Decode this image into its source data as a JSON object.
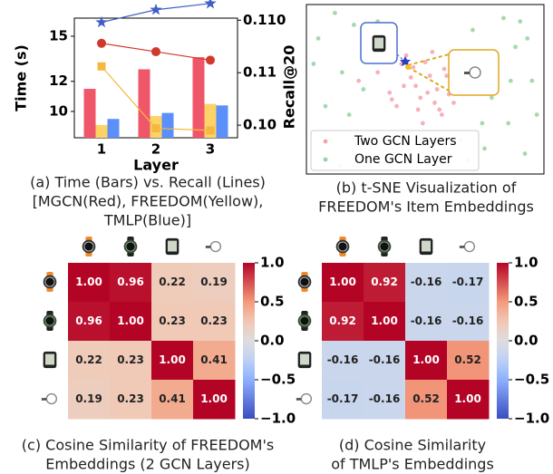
{
  "chart_data": [
    {
      "type": "bar",
      "categories": [
        "1",
        "2",
        "3"
      ],
      "xlabel": "Layer",
      "ylabel": "Time (s)",
      "y2label": "Recall@20",
      "ylim": [
        8.25,
        16.2
      ],
      "yticks": [
        10,
        12,
        15
      ],
      "y2lim": [
        0.0988,
        0.1102
      ],
      "y2ticks": [
        {
          "value": 0.11,
          "label": "0.110"
        },
        {
          "value": 0.105,
          "label": "0.11"
        },
        {
          "value": 0.1,
          "label": "0.10"
        }
      ],
      "series": [
        {
          "color": "#f0566a",
          "values": [
            11.5,
            12.8,
            13.6
          ]
        },
        {
          "color": "#fcd367",
          "values": [
            9.1,
            9.7,
            10.5
          ]
        },
        {
          "color": "#5b8ff9",
          "values": [
            9.5,
            9.9,
            10.4
          ]
        },
        {
          "type": "line",
          "axis": "y2",
          "marker": "star",
          "color": "#3f5fc8",
          "values": [
            0.1098,
            0.111,
            0.1116
          ]
        },
        {
          "type": "line",
          "axis": "y2",
          "marker": "circle",
          "color": "#d03a2c",
          "values": [
            0.1078,
            0.107,
            0.1062
          ]
        },
        {
          "type": "line",
          "axis": "y2",
          "marker": "square",
          "color": "#f5b73f",
          "values": [
            0.1056,
            0.0997,
            0.0995
          ]
        }
      ],
      "caption": [
        "(a) Time (Bars) vs. Recall (Lines)",
        "[MGCN(Red), FREEDOM(Yellow),",
        "TMLP(Blue)]"
      ]
    },
    {
      "type": "scatter",
      "xlim": [
        0,
        100
      ],
      "ylim": [
        0,
        100
      ],
      "legend": "lower left",
      "series": [
        {
          "name": "Two GCN Layers",
          "color": "#f4a3ad",
          "x": [
            22,
            30,
            35,
            41,
            45,
            48,
            52,
            55,
            58,
            60,
            63,
            38,
            42,
            47,
            50,
            54,
            57,
            61,
            66,
            44,
            49,
            53,
            36,
            40,
            56,
            59,
            46,
            51,
            33,
            62
          ],
          "y": [
            55,
            60,
            48,
            52,
            63,
            45,
            58,
            50,
            62,
            47,
            55,
            40,
            70,
            38,
            66,
            42,
            35,
            68,
            50,
            57,
            30,
            72,
            44,
            65,
            38,
            58,
            52,
            48,
            67,
            42
          ]
        },
        {
          "name": "One GCN Layer",
          "color": "#93d3a0",
          "x": [
            5,
            10,
            15,
            20,
            25,
            70,
            75,
            80,
            85,
            90,
            95,
            8,
            12,
            78,
            88,
            92,
            18,
            28,
            72,
            83,
            65,
            30,
            68,
            3,
            97,
            86,
            14,
            74,
            24,
            93
          ],
          "y": [
            80,
            20,
            60,
            88,
            10,
            85,
            15,
            70,
            30,
            90,
            55,
            40,
            95,
            45,
            75,
            12,
            35,
            75,
            60,
            92,
            20,
            90,
            8,
            65,
            35,
            55,
            5,
            30,
            50,
            80
          ]
        }
      ],
      "caption": [
        "(b) t-SNE Visualization of",
        "FREEDOM's Item Embeddings"
      ]
    },
    {
      "type": "heatmap",
      "colormap": "coolwarm",
      "values": [
        [
          1,
          0.96,
          0.22,
          0.19
        ],
        [
          0.96,
          1,
          0.23,
          0.23
        ],
        [
          0.22,
          0.23,
          1,
          0.41
        ],
        [
          0.19,
          0.23,
          0.41,
          1
        ]
      ],
      "value_labels": [
        [
          "1.00",
          "0.96",
          "0.22",
          "0.19"
        ],
        [
          "0.96",
          "1.00",
          "0.23",
          "0.23"
        ],
        [
          "0.22",
          "0.23",
          "1.00",
          "0.41"
        ],
        [
          "0.19",
          "0.23",
          "0.41",
          "1.00"
        ]
      ],
      "zlim": [
        -1,
        1
      ],
      "zticks": [
        {
          "value": 1,
          "label": "1.0"
        },
        0.5,
        {
          "value": 0,
          "label": "0.0"
        },
        {
          "value": -0.5,
          "label": "−0.5"
        },
        {
          "value": -1,
          "label": "−1.0"
        }
      ],
      "caption": [
        "(c) Cosine Similarity of FREEDOM's",
        "Embeddings (2 GCN Layers)"
      ]
    },
    {
      "type": "heatmap",
      "colormap": "coolwarm",
      "values": [
        [
          1,
          0.92,
          -0.16,
          -0.17
        ],
        [
          0.92,
          1,
          -0.16,
          -0.16
        ],
        [
          -0.16,
          -0.16,
          1,
          0.52
        ],
        [
          -0.17,
          -0.16,
          0.52,
          1
        ]
      ],
      "value_labels": [
        [
          "1.00",
          "0.92",
          "-0.16",
          "-0.17"
        ],
        [
          "0.92",
          "1.00",
          "-0.16",
          "-0.16"
        ],
        [
          "-0.16",
          "-0.16",
          "1.00",
          "0.52"
        ],
        [
          "-0.17",
          "-0.16",
          "0.52",
          "1.00"
        ]
      ],
      "zlim": [
        -1,
        1
      ],
      "zticks": [
        {
          "value": 1,
          "label": "1.0"
        },
        0.5,
        {
          "value": 0,
          "label": "0.0"
        },
        {
          "value": -0.5,
          "label": "−0.5"
        },
        {
          "value": -1,
          "label": "−1.0"
        }
      ],
      "caption": [
        "(d) Cosine Similarity",
        "of TMLP's Embeddings"
      ]
    }
  ]
}
